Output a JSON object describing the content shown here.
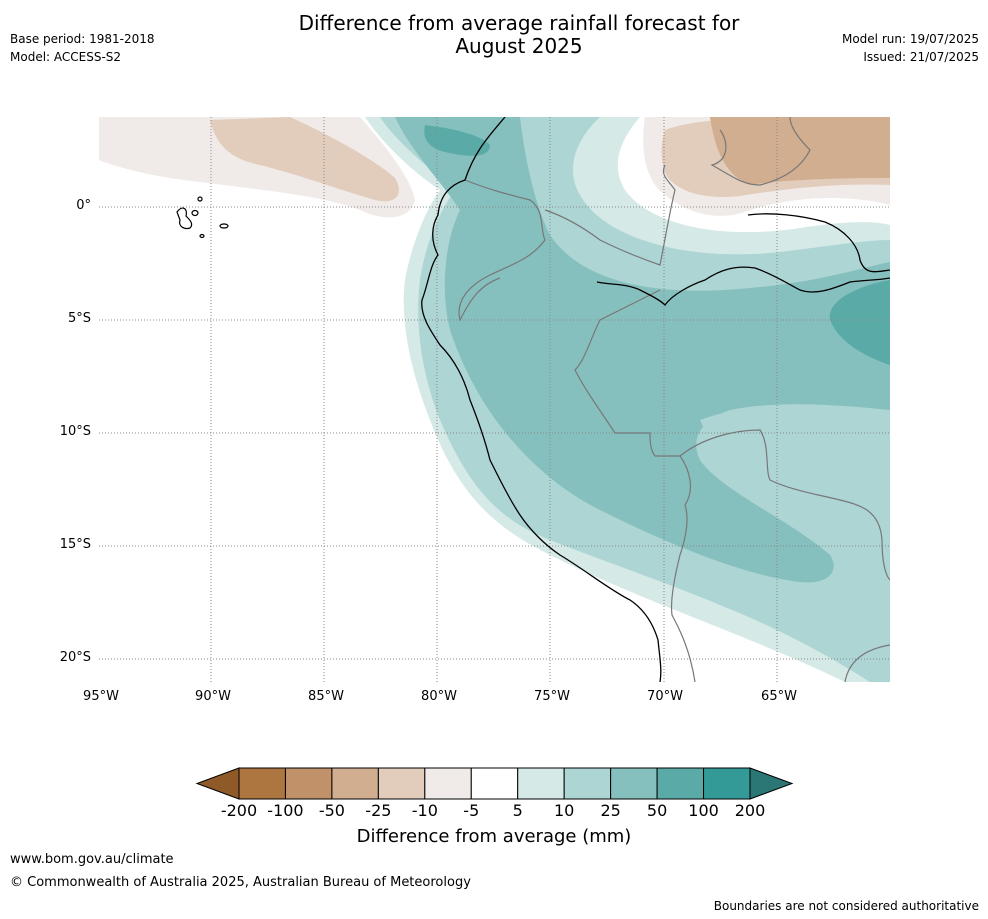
{
  "title": {
    "line1": "Difference from average rainfall forecast for",
    "line2": "August 2025"
  },
  "meta_left": {
    "base_period": "Base period: 1981-2018",
    "model": "Model: ACCESS-S2"
  },
  "meta_right": {
    "model_run": "Model run: 19/07/2025",
    "issued": "Issued: 21/07/2025"
  },
  "map": {
    "lat_labels": [
      "0°",
      "5°S",
      "10°S",
      "15°S",
      "20°S"
    ],
    "lon_labels": [
      "95°W",
      "90°W",
      "85°W",
      "80°W",
      "75°W",
      "70°W",
      "65°W"
    ]
  },
  "colorbar": {
    "ticks": [
      "-200",
      "-100",
      "-50",
      "-25",
      "-10",
      "-5",
      "5",
      "10",
      "25",
      "50",
      "100",
      "200"
    ],
    "colors": [
      "#8f5a28",
      "#ad7540",
      "#c19269",
      "#d1ae8f",
      "#e2cdbc",
      "#f0ebe8",
      "#ffffff",
      "#d5e9e7",
      "#acd5d4",
      "#86c0be",
      "#5aaba8",
      "#339a97",
      "#2b7775"
    ],
    "label": "Difference from average (mm)"
  },
  "footer": {
    "url": "www.bom.gov.au/climate",
    "copyright": "© Commonwealth of Australia 2025, Australian Bureau of Meteorology",
    "note": "Boundaries are not considered authoritative"
  }
}
